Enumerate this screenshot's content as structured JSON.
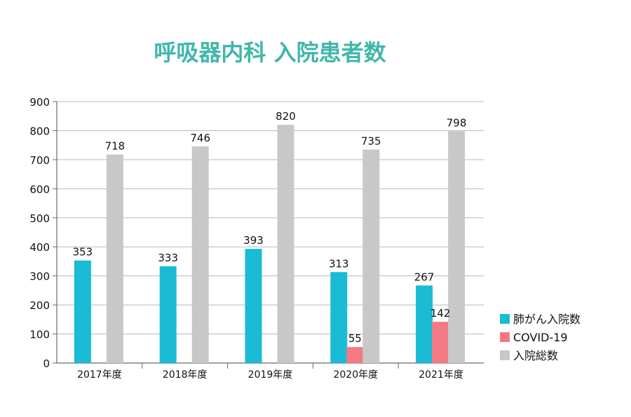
{
  "chart_data": {
    "type": "bar",
    "title": "呼吸器内科 入院患者数",
    "categories": [
      "2017年度",
      "2018年度",
      "2019年度",
      "2020年度",
      "2021年度"
    ],
    "series": [
      {
        "name": "肺がん入院数",
        "values": [
          353,
          333,
          393,
          313,
          267
        ],
        "color": "#19bcd4"
      },
      {
        "name": "COVID-19",
        "values": [
          null,
          null,
          null,
          55,
          142
        ],
        "color": "#f47983"
      },
      {
        "name": "入院総数",
        "values": [
          718,
          746,
          820,
          735,
          798
        ],
        "color": "#c8c8c8"
      }
    ],
    "xlabel": "",
    "ylabel": "",
    "ylim": [
      0,
      900
    ],
    "yticks": [
      "0",
      "100",
      "200",
      "300",
      "400",
      "500",
      "600",
      "700",
      "800",
      "900"
    ],
    "grid": true,
    "legend": "right",
    "title_color": "#3fb7ab",
    "grid_color": "#b8b8b8",
    "axis_color": "#6b6b6b"
  }
}
